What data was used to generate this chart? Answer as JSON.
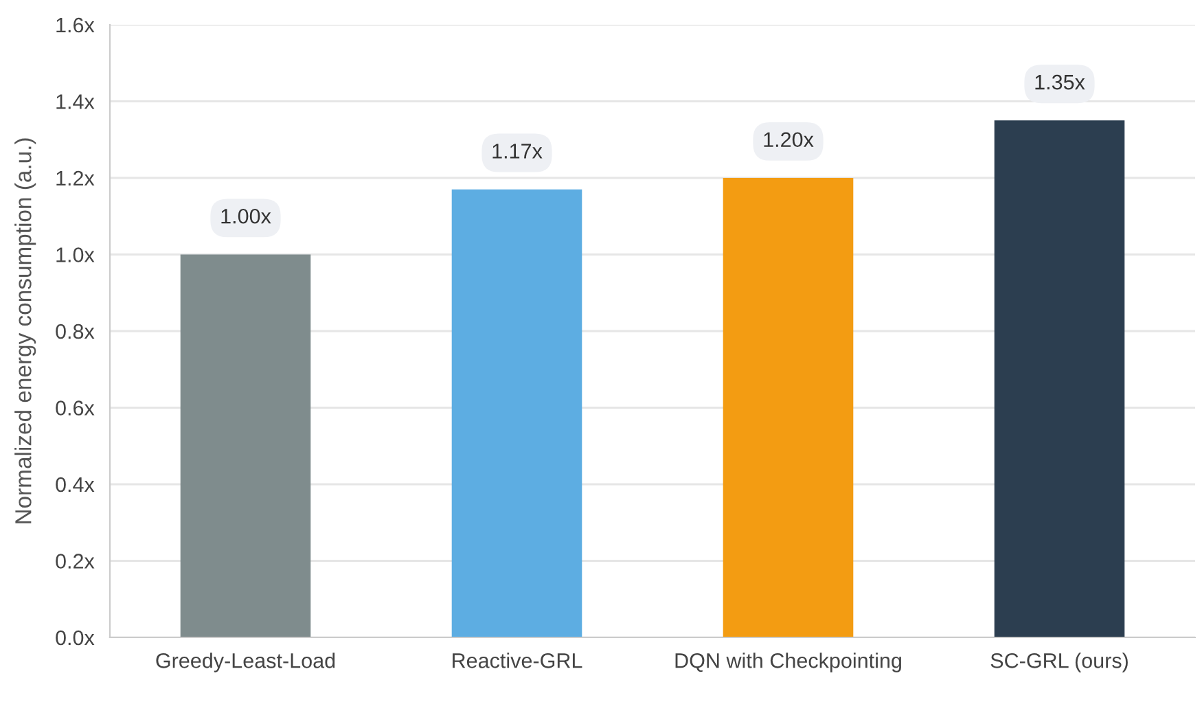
{
  "chart_data": {
    "type": "bar",
    "ylabel": "Normalized energy consumption (a.u.)",
    "categories": [
      "Greedy-Least-Load",
      "Reactive-GRL",
      "DQN with Checkpointing",
      "SC-GRL (ours)"
    ],
    "values": [
      1.0,
      1.17,
      1.2,
      1.35
    ],
    "colors": [
      "#7f8c8d",
      "#5dade2",
      "#f39c12",
      "#2c3e50"
    ],
    "value_labels": [
      "1.00x",
      "1.17x",
      "1.20x",
      "1.35x"
    ],
    "ylim": [
      0,
      1.6
    ],
    "yticks": [
      {
        "value": 0,
        "label": "0.0x"
      },
      {
        "value": 0.2,
        "label": "0.2x"
      },
      {
        "value": 0.4,
        "label": "0.4x"
      },
      {
        "value": 0.6,
        "label": "0.6x"
      },
      {
        "value": 0.8,
        "label": "0.8x"
      },
      {
        "value": 1.0,
        "label": "1.0x"
      },
      {
        "value": 1.2,
        "label": "1.2x"
      },
      {
        "value": 1.4,
        "label": "1.4x"
      },
      {
        "value": 1.6,
        "label": "1.6x"
      }
    ],
    "grid": "y"
  }
}
